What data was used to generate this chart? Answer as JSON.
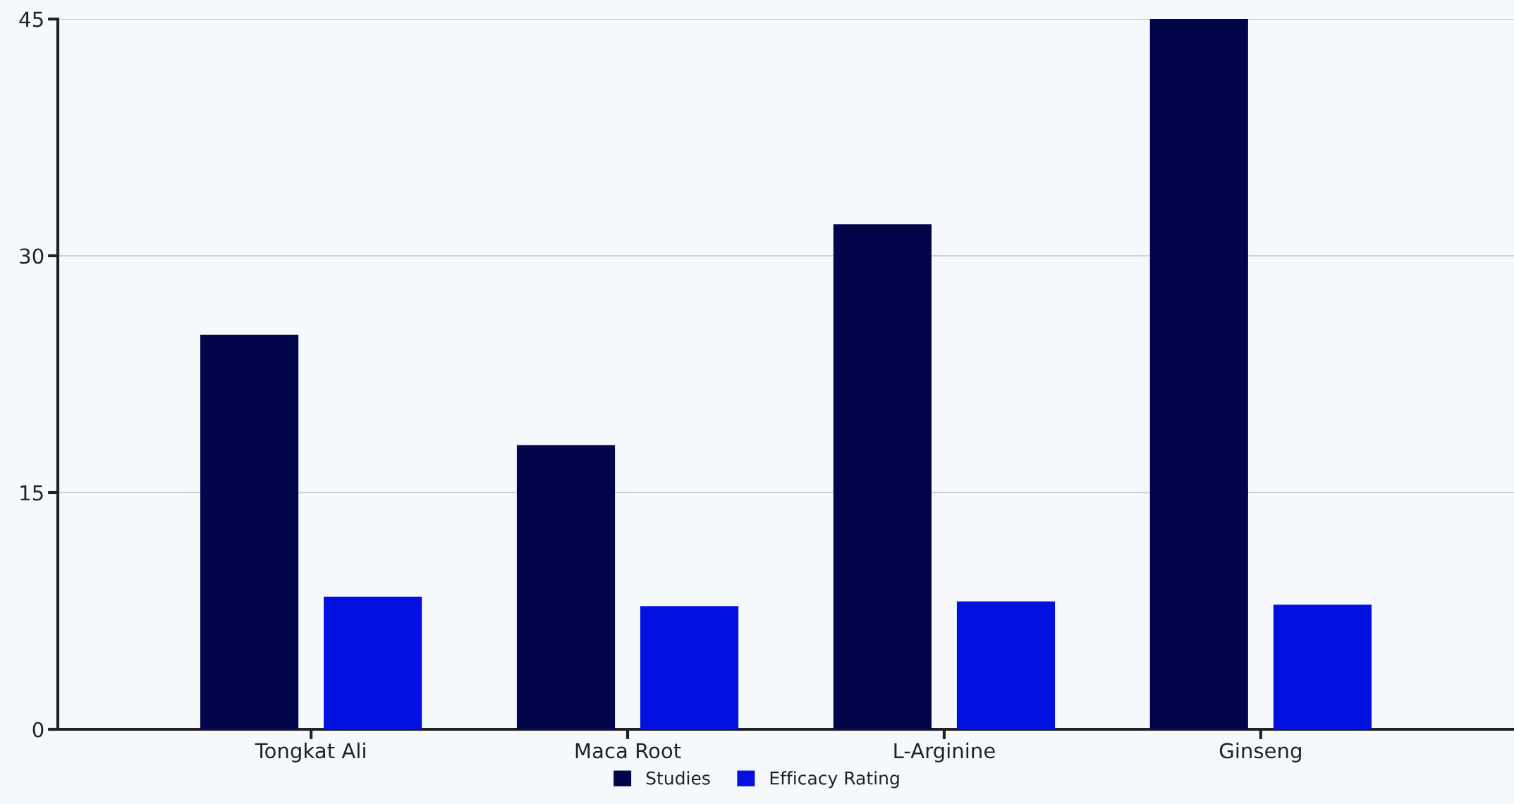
{
  "chart_data": {
    "type": "bar",
    "categories": [
      "Tongkat Ali",
      "Maca Root",
      "L-Arginine",
      "Ginseng"
    ],
    "series": [
      {
        "name": "Studies",
        "color": "#01064a",
        "values": [
          25,
          18,
          32,
          45
        ]
      },
      {
        "name": "Efficacy Rating",
        "color": "#0211e0",
        "values": [
          8.4,
          7.8,
          8.1,
          7.9
        ]
      }
    ],
    "ylim": [
      0,
      45
    ],
    "yticks": [
      0,
      15,
      30,
      45
    ],
    "grid": "y",
    "legend": "bottom"
  }
}
